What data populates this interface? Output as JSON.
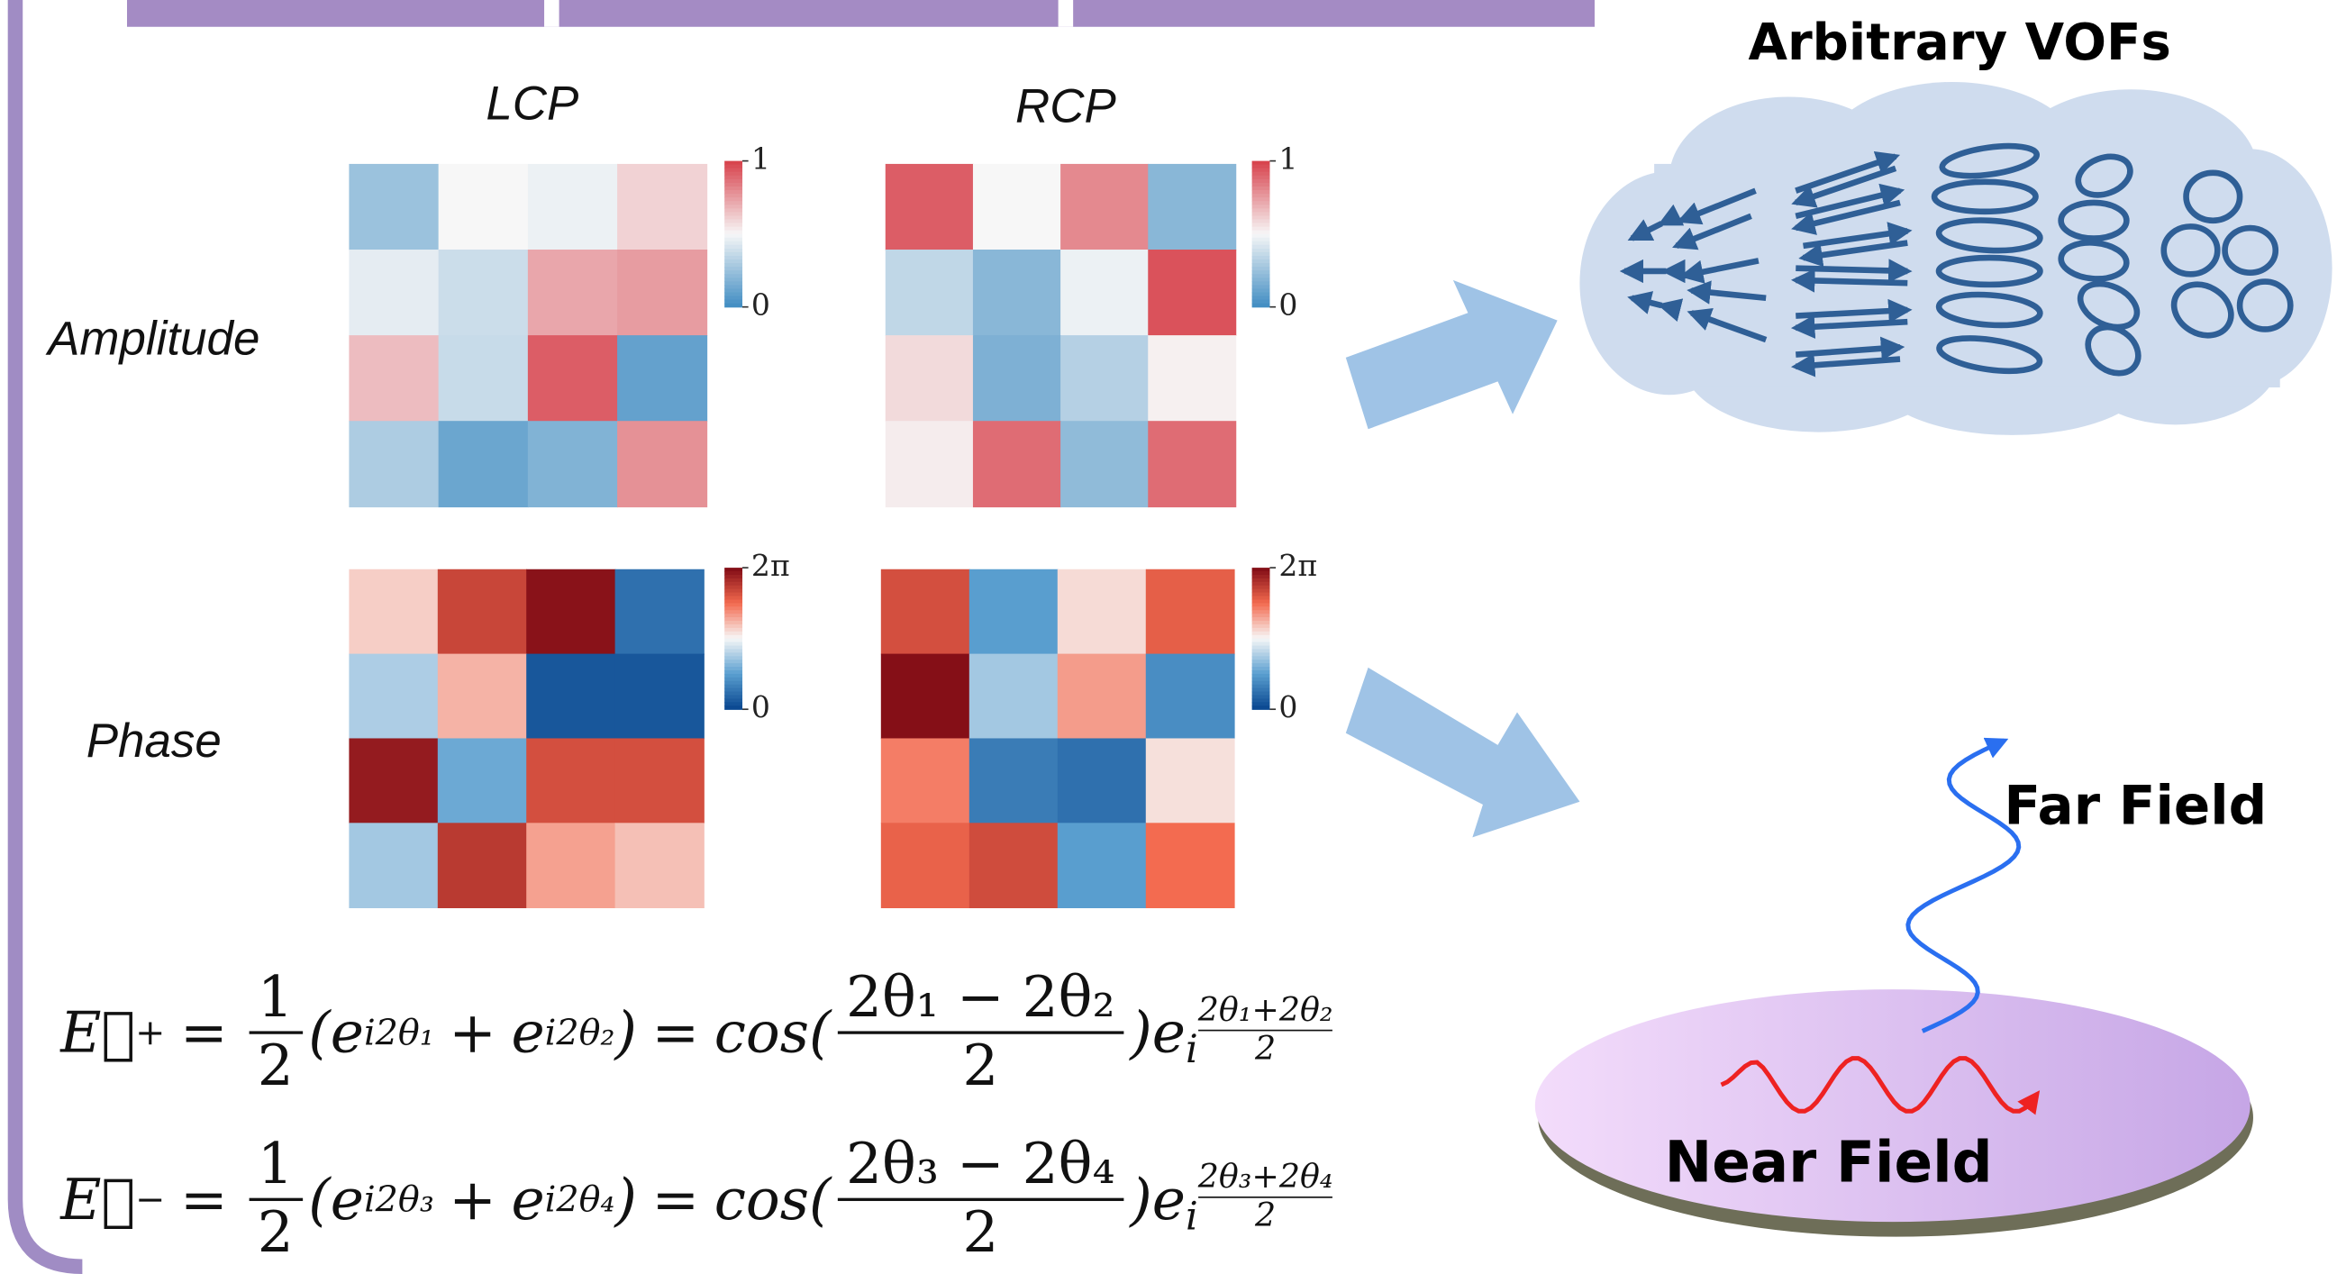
{
  "header": {
    "title": "Arbitrary VOFs"
  },
  "heatmaps": {
    "columns": [
      "LCP",
      "RCP"
    ],
    "rows": [
      {
        "label": "Amplitude",
        "lim": [
          0,
          1
        ],
        "ticks": [
          0,
          1
        ],
        "colors": [
          "#3f8cc2",
          "#f7f7f7",
          "#d7404a"
        ],
        "maps": [
          [
            [
              0.25,
              0.5,
              0.47,
              0.6
            ],
            [
              0.45,
              0.38,
              0.72,
              0.75
            ],
            [
              0.66,
              0.37,
              0.92,
              0.1
            ],
            [
              0.3,
              0.12,
              0.18,
              0.78
            ]
          ],
          [
            [
              0.92,
              0.5,
              0.8,
              0.2
            ],
            [
              0.35,
              0.2,
              0.47,
              0.95
            ],
            [
              0.58,
              0.17,
              0.32,
              0.52
            ],
            [
              0.53,
              0.88,
              0.22,
              0.88
            ]
          ]
        ]
      },
      {
        "label": "Phase",
        "lim": [
          0,
          6.283
        ],
        "ticks": [
          0,
          {
            "value": 6.283,
            "label": "2π"
          }
        ],
        "colors": [
          "#08468f",
          "#5a9fd0",
          "#f7f7f7",
          "#f36a4f",
          "#7f0a14"
        ],
        "maps": [
          [
            [
              3.6,
              5.3,
              6.15,
              0.75
            ],
            [
              2.4,
              3.9,
              0.3,
              0.3
            ],
            [
              6.0,
              1.75,
              5.15,
              5.15
            ],
            [
              2.3,
              5.5,
              4.1,
              3.75
            ]
          ],
          [
            [
              5.15,
              1.55,
              3.45,
              4.9
            ],
            [
              6.2,
              2.3,
              4.15,
              1.25
            ],
            [
              4.5,
              0.95,
              0.75,
              3.4
            ],
            [
              4.85,
              5.2,
              1.55,
              4.7
            ]
          ]
        ]
      }
    ]
  },
  "equations": [
    {
      "lhs": "E⃗",
      "lhs_sup": "+",
      "eq1": "=",
      "f1_num": "1",
      "f1_den": "2",
      "base1": "(e",
      "exp1": "i2θ₁",
      "plus": "+",
      "base2": "e",
      "exp2": "i2θ₂",
      "close1": ")",
      "eq2": "=",
      "cos": "cos(",
      "f2_num": "2θ₁ − 2θ₂",
      "f2_den": "2",
      "close2": ")e",
      "exp3": "i",
      "exp3_num": "2θ₁+2θ₂",
      "exp3_den": "2"
    },
    {
      "lhs": "E⃗",
      "lhs_sup": "−",
      "eq1": "=",
      "f1_num": "1",
      "f1_den": "2",
      "base1": "(e",
      "exp1": "i2θ₃",
      "plus": "+",
      "base2": "e",
      "exp2": "i2θ₄",
      "close1": ")",
      "eq2": "=",
      "cos": "cos(",
      "f2_num": "2θ₃ − 2θ₄",
      "f2_den": "2",
      "close2": ")e",
      "exp3": "i",
      "exp3_num": "2θ₃+2θ₄",
      "exp3_den": "2"
    }
  ],
  "labels": {
    "far_field": "Far Field",
    "near_field": "Near Field"
  }
}
